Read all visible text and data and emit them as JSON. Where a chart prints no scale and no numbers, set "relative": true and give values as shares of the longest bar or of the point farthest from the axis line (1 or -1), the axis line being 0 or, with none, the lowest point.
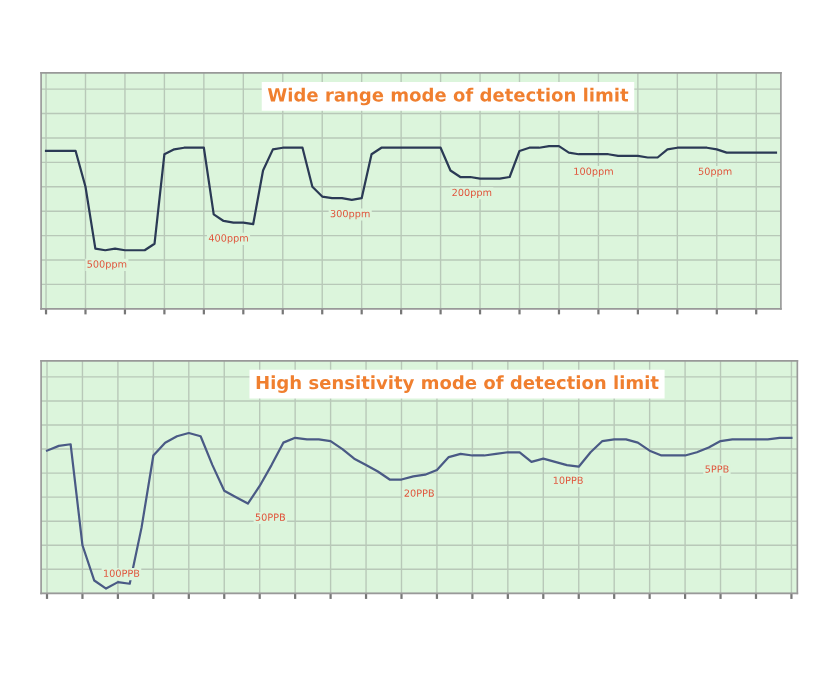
{
  "chart_data": [
    {
      "type": "line",
      "relative": true,
      "title": "Wide range mode of detection limit",
      "grid": true,
      "tick_labels": false,
      "marker": "none",
      "line_style": "solid",
      "categories": [
        null,
        null,
        null,
        null,
        null,
        null,
        null,
        null,
        null,
        null,
        null,
        null,
        null,
        null,
        null,
        null,
        null,
        null,
        null,
        null,
        null,
        null,
        null,
        null,
        null,
        null,
        null,
        null,
        null,
        null,
        null,
        null,
        null,
        null,
        null,
        null,
        null,
        null,
        null,
        null,
        null,
        null,
        null,
        null,
        null,
        null,
        null,
        null,
        null,
        null,
        null,
        null,
        null,
        null,
        null,
        null,
        null,
        null,
        null,
        null,
        null,
        null,
        null,
        null,
        null,
        null,
        null,
        null,
        null,
        null,
        null,
        null,
        null,
        null,
        null
      ],
      "series": [
        {
          "color": "#2b3a55",
          "values": [
            0.97,
            0.97,
            0.97,
            0.97,
            0.75,
            0.37,
            0.36,
            0.37,
            0.36,
            0.36,
            0.36,
            0.4,
            0.95,
            0.98,
            0.99,
            0.99,
            0.99,
            0.58,
            0.54,
            0.53,
            0.53,
            0.52,
            0.85,
            0.98,
            0.99,
            0.99,
            0.99,
            0.75,
            0.69,
            0.68,
            0.68,
            0.67,
            0.68,
            0.95,
            0.99,
            0.99,
            0.99,
            0.99,
            0.99,
            0.99,
            0.99,
            0.85,
            0.81,
            0.81,
            0.8,
            0.8,
            0.8,
            0.81,
            0.97,
            0.99,
            0.99,
            1.0,
            1.0,
            0.96,
            0.95,
            0.95,
            0.95,
            0.95,
            0.94,
            0.94,
            0.94,
            0.93,
            0.93,
            0.98,
            0.99,
            0.99,
            0.99,
            0.99,
            0.98,
            0.96,
            0.96,
            0.96,
            0.96,
            0.96,
            0.96
          ]
        }
      ],
      "annotations": [
        "500ppm",
        "400ppm",
        "300ppm",
        "200ppm",
        "100ppm",
        "50ppm"
      ]
    },
    {
      "type": "line",
      "relative": true,
      "title": "High sensitivity mode of detection limit",
      "grid": true,
      "tick_labels": false,
      "marker": "none",
      "line_style": "solid",
      "categories": [
        null,
        null,
        null,
        null,
        null,
        null,
        null,
        null,
        null,
        null,
        null,
        null,
        null,
        null,
        null,
        null,
        null,
        null,
        null,
        null,
        null,
        null,
        null,
        null,
        null,
        null,
        null,
        null,
        null,
        null,
        null,
        null,
        null,
        null,
        null,
        null,
        null,
        null,
        null,
        null,
        null,
        null,
        null,
        null,
        null,
        null,
        null,
        null,
        null,
        null,
        null,
        null,
        null,
        null,
        null,
        null,
        null,
        null,
        null,
        null,
        null,
        null,
        null,
        null
      ],
      "series": [
        {
          "color": "#4a5a85",
          "values": [
            0.89,
            0.92,
            0.93,
            0.3,
            0.08,
            0.03,
            0.07,
            0.06,
            0.41,
            0.86,
            0.94,
            0.98,
            1.0,
            0.98,
            0.8,
            0.64,
            0.6,
            0.56,
            0.67,
            0.8,
            0.94,
            0.97,
            0.96,
            0.96,
            0.95,
            0.9,
            0.84,
            0.8,
            0.76,
            0.71,
            0.71,
            0.73,
            0.74,
            0.77,
            0.85,
            0.87,
            0.86,
            0.86,
            0.87,
            0.88,
            0.88,
            0.82,
            0.84,
            0.82,
            0.8,
            0.79,
            0.88,
            0.95,
            0.96,
            0.96,
            0.94,
            0.89,
            0.86,
            0.86,
            0.86,
            0.88,
            0.91,
            0.95,
            0.96,
            0.96,
            0.96,
            0.96,
            0.97,
            0.97
          ]
        }
      ],
      "annotations": [
        "100PPB",
        "50PPB",
        "20PPB",
        "10PPB",
        "5PPB"
      ]
    }
  ]
}
